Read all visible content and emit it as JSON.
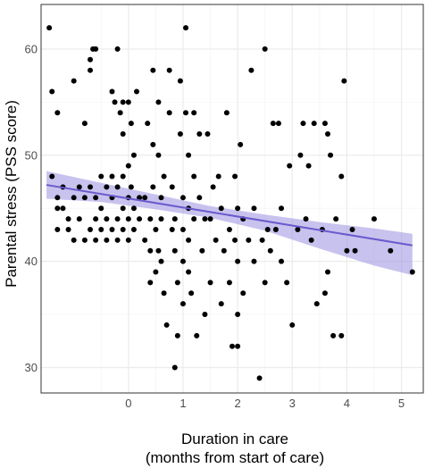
{
  "chart_data": {
    "type": "scatter",
    "title": "",
    "xlabel_lines": [
      "Duration in care",
      "(months from start of care)"
    ],
    "ylabel": "Parental stress (PSS score)",
    "xlim": [
      -1.6,
      5.4
    ],
    "ylim": [
      27.6,
      64.2
    ],
    "xticks": [
      0,
      1,
      2,
      3,
      4,
      5
    ],
    "yticks": [
      30,
      40,
      50,
      60
    ],
    "grid": true,
    "legend": "none",
    "colors": {
      "points": "#000000",
      "trend_line": "#6a5acd",
      "ci_band": "#9b8fe0",
      "panel_background": "#ffffff",
      "grid_major": "#ebebeb",
      "grid_minor": "#f5f5f5",
      "panel_border": "#333333"
    },
    "trend": {
      "x": [
        -1.5,
        5.2
      ],
      "y": [
        47.2,
        41.5
      ]
    },
    "ci_band": {
      "x": [
        -1.5,
        -0.5,
        0.5,
        1.5,
        2.5,
        3.5,
        4.5,
        5.2
      ],
      "lower": [
        45.9,
        45.6,
        44.9,
        44.1,
        42.9,
        41.2,
        39.6,
        38.7
      ],
      "upper": [
        48.5,
        47.4,
        46.3,
        45.2,
        44.4,
        43.7,
        43.1,
        42.6
      ]
    },
    "points": [
      {
        "x": -1.45,
        "y": 62
      },
      {
        "x": -1.4,
        "y": 56
      },
      {
        "x": -1.4,
        "y": 48
      },
      {
        "x": -1.3,
        "y": 54
      },
      {
        "x": -1.3,
        "y": 46
      },
      {
        "x": -1.3,
        "y": 45
      },
      {
        "x": -1.3,
        "y": 43
      },
      {
        "x": -1.2,
        "y": 47
      },
      {
        "x": -1.2,
        "y": 45
      },
      {
        "x": -1.1,
        "y": 44
      },
      {
        "x": -1.1,
        "y": 43
      },
      {
        "x": -1.0,
        "y": 57
      },
      {
        "x": -1.0,
        "y": 46
      },
      {
        "x": -1.0,
        "y": 42
      },
      {
        "x": -0.9,
        "y": 47
      },
      {
        "x": -0.9,
        "y": 44
      },
      {
        "x": -0.8,
        "y": 53
      },
      {
        "x": -0.8,
        "y": 46
      },
      {
        "x": -0.8,
        "y": 42
      },
      {
        "x": -0.7,
        "y": 59
      },
      {
        "x": -0.7,
        "y": 58
      },
      {
        "x": -0.7,
        "y": 47
      },
      {
        "x": -0.7,
        "y": 43
      },
      {
        "x": -0.65,
        "y": 60
      },
      {
        "x": -0.6,
        "y": 60
      },
      {
        "x": -0.6,
        "y": 46
      },
      {
        "x": -0.6,
        "y": 44
      },
      {
        "x": -0.6,
        "y": 42
      },
      {
        "x": -0.5,
        "y": 48
      },
      {
        "x": -0.5,
        "y": 45
      },
      {
        "x": -0.5,
        "y": 43
      },
      {
        "x": -0.4,
        "y": 47
      },
      {
        "x": -0.4,
        "y": 44
      },
      {
        "x": -0.4,
        "y": 42
      },
      {
        "x": -0.3,
        "y": 56
      },
      {
        "x": -0.3,
        "y": 48
      },
      {
        "x": -0.3,
        "y": 46
      },
      {
        "x": -0.3,
        "y": 43
      },
      {
        "x": -0.25,
        "y": 55
      },
      {
        "x": -0.2,
        "y": 60
      },
      {
        "x": -0.2,
        "y": 47
      },
      {
        "x": -0.2,
        "y": 44
      },
      {
        "x": -0.2,
        "y": 42
      },
      {
        "x": -0.15,
        "y": 54
      },
      {
        "x": -0.1,
        "y": 55
      },
      {
        "x": -0.1,
        "y": 52
      },
      {
        "x": -0.1,
        "y": 48
      },
      {
        "x": -0.1,
        "y": 45
      },
      {
        "x": -0.1,
        "y": 43
      },
      {
        "x": 0.0,
        "y": 55
      },
      {
        "x": 0.0,
        "y": 49
      },
      {
        "x": 0.0,
        "y": 46
      },
      {
        "x": 0.0,
        "y": 44
      },
      {
        "x": 0.0,
        "y": 42
      },
      {
        "x": 0.05,
        "y": 53
      },
      {
        "x": 0.05,
        "y": 47
      },
      {
        "x": 0.1,
        "y": 50
      },
      {
        "x": 0.1,
        "y": 45
      },
      {
        "x": 0.1,
        "y": 43
      },
      {
        "x": 0.15,
        "y": 56
      },
      {
        "x": 0.2,
        "y": 46
      },
      {
        "x": 0.2,
        "y": 44
      },
      {
        "x": 0.3,
        "y": 42
      },
      {
        "x": 0.3,
        "y": 46
      },
      {
        "x": 0.35,
        "y": 53
      },
      {
        "x": 0.4,
        "y": 41
      },
      {
        "x": 0.4,
        "y": 44
      },
      {
        "x": 0.4,
        "y": 38
      },
      {
        "x": 0.45,
        "y": 58
      },
      {
        "x": 0.45,
        "y": 51
      },
      {
        "x": 0.45,
        "y": 47
      },
      {
        "x": 0.5,
        "y": 43
      },
      {
        "x": 0.5,
        "y": 39
      },
      {
        "x": 0.55,
        "y": 55
      },
      {
        "x": 0.55,
        "y": 50
      },
      {
        "x": 0.55,
        "y": 41
      },
      {
        "x": 0.6,
        "y": 46
      },
      {
        "x": 0.6,
        "y": 44
      },
      {
        "x": 0.6,
        "y": 40
      },
      {
        "x": 0.65,
        "y": 48
      },
      {
        "x": 0.65,
        "y": 37
      },
      {
        "x": 0.7,
        "y": 34
      },
      {
        "x": 0.75,
        "y": 58
      },
      {
        "x": 0.75,
        "y": 54
      },
      {
        "x": 0.8,
        "y": 47
      },
      {
        "x": 0.8,
        "y": 43
      },
      {
        "x": 0.85,
        "y": 44
      },
      {
        "x": 0.85,
        "y": 41
      },
      {
        "x": 0.85,
        "y": 30
      },
      {
        "x": 0.9,
        "y": 38
      },
      {
        "x": 0.9,
        "y": 33
      },
      {
        "x": 0.95,
        "y": 57
      },
      {
        "x": 0.95,
        "y": 52
      },
      {
        "x": 1.0,
        "y": 46
      },
      {
        "x": 1.0,
        "y": 43
      },
      {
        "x": 1.0,
        "y": 40
      },
      {
        "x": 1.0,
        "y": 36
      },
      {
        "x": 1.05,
        "y": 62
      },
      {
        "x": 1.05,
        "y": 54
      },
      {
        "x": 1.1,
        "y": 50
      },
      {
        "x": 1.1,
        "y": 45
      },
      {
        "x": 1.1,
        "y": 42
      },
      {
        "x": 1.1,
        "y": 39
      },
      {
        "x": 1.15,
        "y": 37
      },
      {
        "x": 1.2,
        "y": 54
      },
      {
        "x": 1.2,
        "y": 48
      },
      {
        "x": 1.2,
        "y": 44
      },
      {
        "x": 1.25,
        "y": 33
      },
      {
        "x": 1.3,
        "y": 52
      },
      {
        "x": 1.3,
        "y": 46
      },
      {
        "x": 1.35,
        "y": 41
      },
      {
        "x": 1.4,
        "y": 44
      },
      {
        "x": 1.4,
        "y": 35
      },
      {
        "x": 1.45,
        "y": 52
      },
      {
        "x": 1.5,
        "y": 44
      },
      {
        "x": 1.5,
        "y": 38
      },
      {
        "x": 1.55,
        "y": 47
      },
      {
        "x": 1.6,
        "y": 42
      },
      {
        "x": 1.65,
        "y": 48
      },
      {
        "x": 1.7,
        "y": 45
      },
      {
        "x": 1.7,
        "y": 36
      },
      {
        "x": 1.75,
        "y": 41
      },
      {
        "x": 1.8,
        "y": 54
      },
      {
        "x": 1.85,
        "y": 43
      },
      {
        "x": 1.85,
        "y": 38
      },
      {
        "x": 1.9,
        "y": 32
      },
      {
        "x": 1.95,
        "y": 48
      },
      {
        "x": 1.95,
        "y": 42
      },
      {
        "x": 2.0,
        "y": 45
      },
      {
        "x": 2.0,
        "y": 40
      },
      {
        "x": 2.0,
        "y": 35
      },
      {
        "x": 2.0,
        "y": 32
      },
      {
        "x": 2.05,
        "y": 51
      },
      {
        "x": 2.1,
        "y": 44
      },
      {
        "x": 2.1,
        "y": 37
      },
      {
        "x": 2.2,
        "y": 42
      },
      {
        "x": 2.25,
        "y": 58
      },
      {
        "x": 2.3,
        "y": 45
      },
      {
        "x": 2.3,
        "y": 40
      },
      {
        "x": 2.4,
        "y": 29
      },
      {
        "x": 2.45,
        "y": 42
      },
      {
        "x": 2.5,
        "y": 60
      },
      {
        "x": 2.5,
        "y": 38
      },
      {
        "x": 2.55,
        "y": 43
      },
      {
        "x": 2.6,
        "y": 41
      },
      {
        "x": 2.65,
        "y": 53
      },
      {
        "x": 2.7,
        "y": 43
      },
      {
        "x": 2.75,
        "y": 53
      },
      {
        "x": 2.8,
        "y": 45
      },
      {
        "x": 2.8,
        "y": 40
      },
      {
        "x": 2.9,
        "y": 38
      },
      {
        "x": 2.95,
        "y": 49
      },
      {
        "x": 3.0,
        "y": 34
      },
      {
        "x": 3.1,
        "y": 43
      },
      {
        "x": 3.15,
        "y": 50
      },
      {
        "x": 3.2,
        "y": 53
      },
      {
        "x": 3.25,
        "y": 44
      },
      {
        "x": 3.3,
        "y": 49
      },
      {
        "x": 3.35,
        "y": 42
      },
      {
        "x": 3.4,
        "y": 53
      },
      {
        "x": 3.45,
        "y": 36
      },
      {
        "x": 3.55,
        "y": 43
      },
      {
        "x": 3.6,
        "y": 53
      },
      {
        "x": 3.6,
        "y": 37
      },
      {
        "x": 3.65,
        "y": 52
      },
      {
        "x": 3.65,
        "y": 39
      },
      {
        "x": 3.7,
        "y": 50
      },
      {
        "x": 3.75,
        "y": 33
      },
      {
        "x": 3.8,
        "y": 44
      },
      {
        "x": 3.9,
        "y": 48
      },
      {
        "x": 3.9,
        "y": 33
      },
      {
        "x": 3.95,
        "y": 57
      },
      {
        "x": 4.0,
        "y": 41
      },
      {
        "x": 4.1,
        "y": 43
      },
      {
        "x": 4.15,
        "y": 41
      },
      {
        "x": 4.5,
        "y": 44
      },
      {
        "x": 4.8,
        "y": 41
      },
      {
        "x": 5.2,
        "y": 39
      }
    ]
  }
}
